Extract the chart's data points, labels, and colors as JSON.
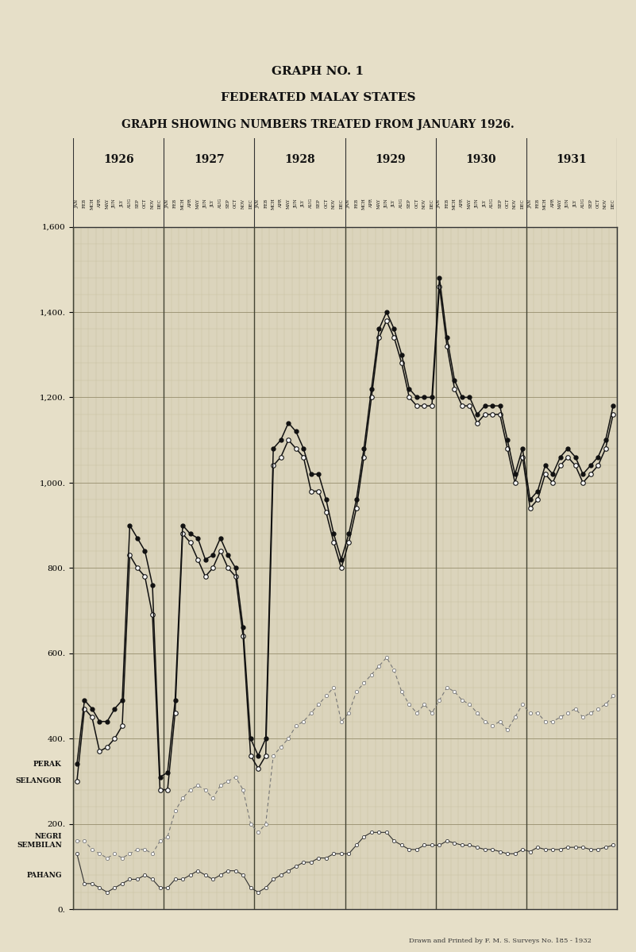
{
  "title1": "GRAPH NO. 1",
  "title2": "FEDERATED MALAY STATES",
  "title3": "GRAPH SHOWING NUMBERS TREATED FROM JANUARY 1926.",
  "footer": "Drawn and Printed by F. M. S. Surveys No. 185 - 1932",
  "bg_color": "#e6dfc8",
  "plot_bg_color": "#dbd4bc",
  "grid_minor_color": "#c4bc9e",
  "grid_major_color": "#a09878",
  "border_color": "#222222",
  "ylim": [
    0,
    1600
  ],
  "ytick_vals": [
    0,
    200,
    400,
    600,
    800,
    1000,
    1200,
    1400,
    1600
  ],
  "ytick_labels": [
    "0.",
    "200.",
    "400.",
    "600.",
    "800.",
    "1,000.",
    "1,200.",
    "1,400.",
    "1,600"
  ],
  "years": [
    "1926",
    "1927",
    "1928",
    "1929",
    "1930",
    "1931"
  ],
  "months": [
    "JAN",
    "FEB",
    "MCH",
    "APR",
    "MAY",
    "JUN",
    "JLY",
    "AUG",
    "SEP",
    "OCT",
    "NOV",
    "DEC"
  ],
  "perak": [
    340,
    490,
    470,
    440,
    440,
    470,
    490,
    900,
    870,
    840,
    760,
    310,
    320,
    490,
    900,
    880,
    870,
    820,
    830,
    870,
    830,
    800,
    660,
    400,
    360,
    400,
    1080,
    1100,
    1140,
    1120,
    1080,
    1020,
    1020,
    960,
    880,
    820,
    880,
    960,
    1080,
    1220,
    1360,
    1400,
    1360,
    1300,
    1220,
    1200,
    1200,
    1200,
    1480,
    1340,
    1240,
    1200,
    1200,
    1160,
    1180,
    1180,
    1180,
    1100,
    1020,
    1080,
    960,
    980,
    1040,
    1020,
    1060,
    1080,
    1060,
    1020,
    1040,
    1060,
    1100,
    1180
  ],
  "selangor": [
    300,
    470,
    450,
    370,
    380,
    400,
    430,
    830,
    800,
    780,
    690,
    280,
    280,
    460,
    880,
    860,
    820,
    780,
    800,
    840,
    800,
    780,
    640,
    360,
    330,
    360,
    1040,
    1060,
    1100,
    1080,
    1060,
    980,
    980,
    930,
    860,
    800,
    860,
    940,
    1060,
    1200,
    1340,
    1380,
    1340,
    1280,
    1200,
    1180,
    1180,
    1180,
    1460,
    1320,
    1220,
    1180,
    1180,
    1140,
    1160,
    1160,
    1160,
    1080,
    1000,
    1060,
    940,
    960,
    1020,
    1000,
    1040,
    1060,
    1040,
    1000,
    1020,
    1040,
    1080,
    1160
  ],
  "negri_sembilan": [
    160,
    160,
    140,
    130,
    120,
    130,
    120,
    130,
    140,
    140,
    130,
    160,
    170,
    230,
    260,
    280,
    290,
    280,
    260,
    290,
    300,
    310,
    280,
    200,
    180,
    200,
    360,
    380,
    400,
    430,
    440,
    460,
    480,
    500,
    520,
    440,
    460,
    510,
    530,
    550,
    570,
    590,
    560,
    510,
    480,
    460,
    480,
    460,
    490,
    520,
    510,
    490,
    480,
    460,
    440,
    430,
    440,
    420,
    450,
    480,
    460,
    460,
    440,
    440,
    450,
    460,
    470,
    450,
    460,
    470,
    480,
    500
  ],
  "pahang": [
    130,
    60,
    60,
    50,
    40,
    50,
    60,
    70,
    70,
    80,
    70,
    50,
    50,
    70,
    70,
    80,
    90,
    80,
    70,
    80,
    90,
    90,
    80,
    50,
    40,
    50,
    70,
    80,
    90,
    100,
    110,
    110,
    120,
    120,
    130,
    130,
    130,
    150,
    170,
    180,
    180,
    180,
    160,
    150,
    140,
    140,
    150,
    150,
    150,
    160,
    155,
    150,
    150,
    145,
    140,
    140,
    135,
    130,
    130,
    140,
    135,
    145,
    140,
    140,
    140,
    145,
    145,
    145,
    140,
    140,
    145,
    150
  ]
}
